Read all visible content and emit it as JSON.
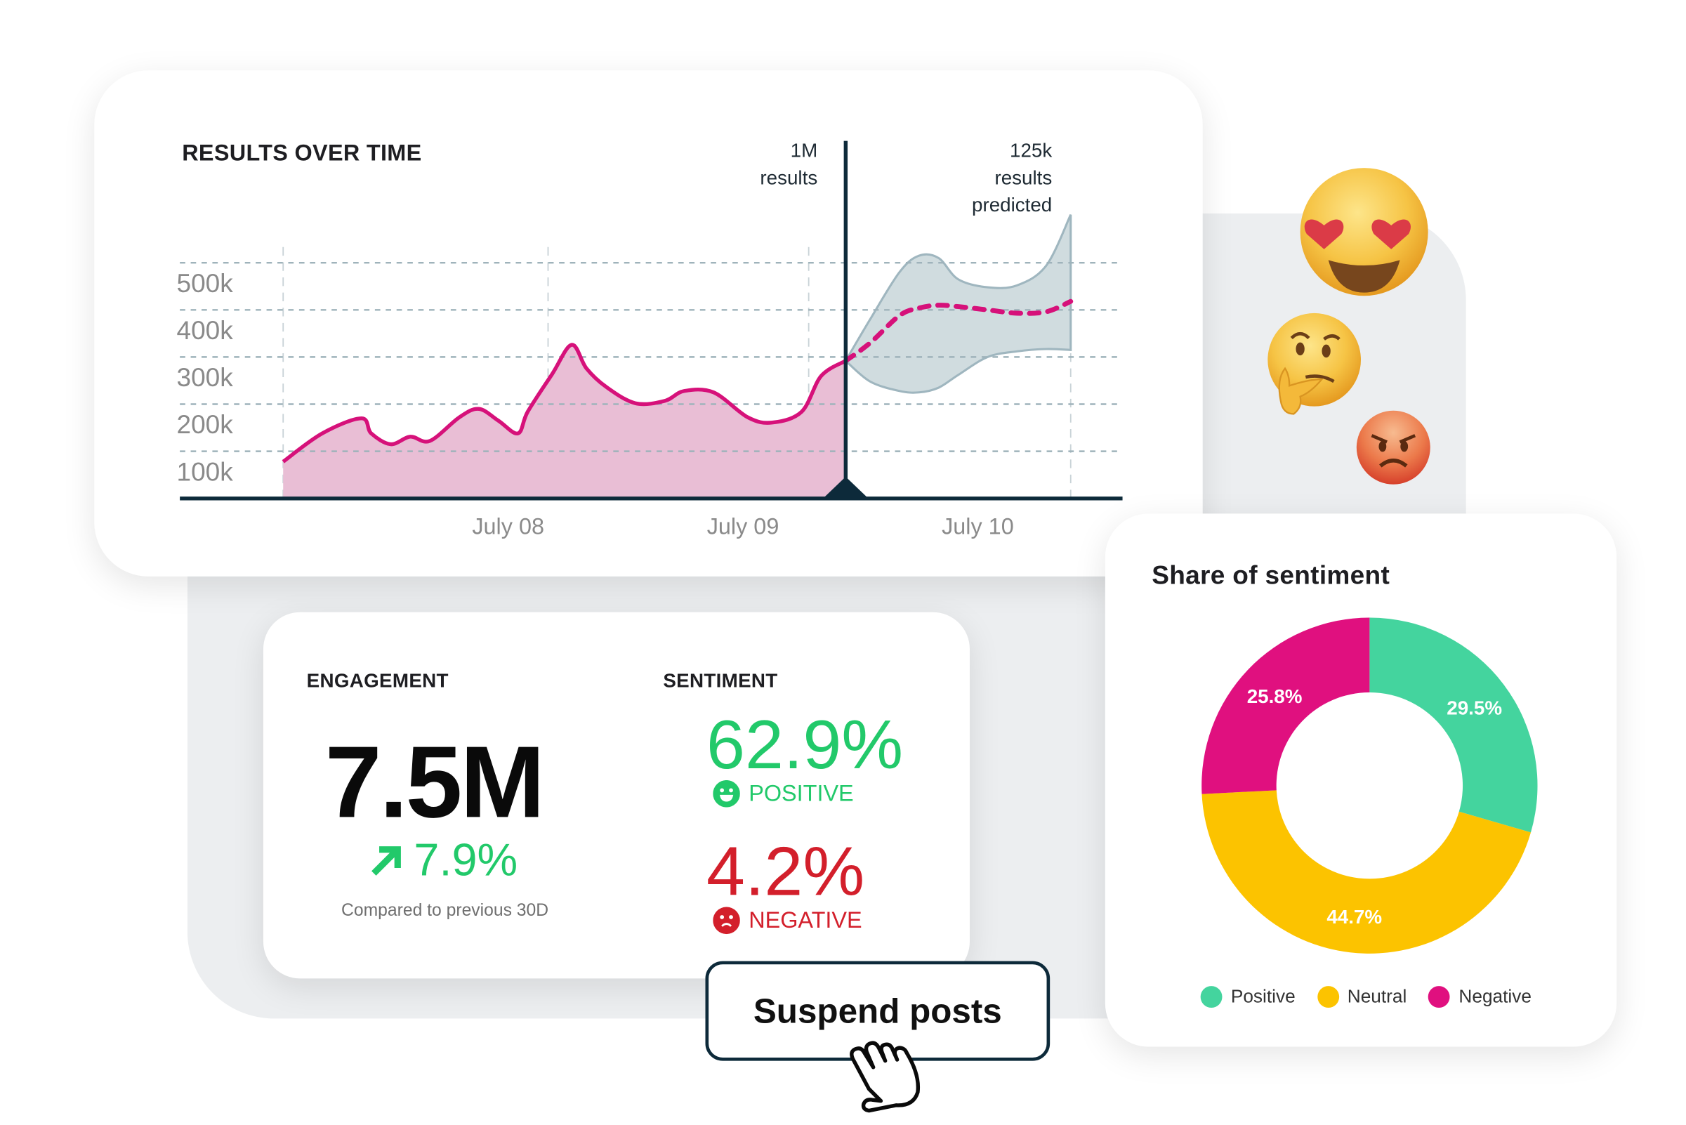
{
  "results_chart": {
    "title": "RESULTS OVER TIME",
    "chart_data": {
      "type": "area",
      "title": "RESULTS OVER TIME",
      "y_ticks": [
        "100k",
        "200k",
        "300k",
        "400k",
        "500k"
      ],
      "y_tick_values": [
        100000,
        200000,
        300000,
        400000,
        500000
      ],
      "x_ticks": [
        {
          "label": "July 08",
          "at": "07-08 00:00"
        },
        {
          "label": "July 09",
          "at": "07-09 00:00"
        },
        {
          "label": "July 10",
          "at": "07-10 00:00"
        }
      ],
      "ylim": [
        0,
        520000
      ],
      "grid": true,
      "series": [
        {
          "kind": "actual",
          "x": [
            "07-07 01:00",
            "07-07 05:00",
            "07-07 09:00",
            "07-07 10:00",
            "07-07 12:00",
            "07-07 14:00",
            "07-07 16:00",
            "07-07 19:00",
            "07-07 21:00",
            "07-07 23:00",
            "07-08 01:00",
            "07-08 02:00",
            "07-08 04:30",
            "07-08 06:30",
            "07-08 08:00",
            "07-08 10:00",
            "07-08 13:00",
            "07-08 16:00",
            "07-08 18:00",
            "07-08 21:00",
            "07-09 00:30",
            "07-09 03:00",
            "07-09 06:00",
            "07-09 08:00",
            "07-09 10:30"
          ],
          "y": [
            78000,
            138000,
            170000,
            138000,
            115000,
            131000,
            122000,
            172000,
            190000,
            165000,
            138000,
            184000,
            264000,
            326000,
            276000,
            237000,
            202000,
            207000,
            228000,
            225000,
            172000,
            161000,
            184000,
            260000,
            292000
          ]
        },
        {
          "kind": "forecast",
          "x": [
            "07-09 10:30",
            "07-09 13:00",
            "07-09 16:00",
            "07-09 18:00",
            "07-09 20:00",
            "07-09 22:00",
            "07-10 01:00",
            "07-10 04:00",
            "07-10 07:00",
            "07-10 09:30"
          ],
          "y": [
            292000,
            330000,
            388000,
            404000,
            410000,
            407000,
            400000,
            393000,
            396000,
            418000
          ],
          "upper": [
            292000,
            380000,
            480000,
            515000,
            510000,
            465000,
            448000,
            452000,
            494000,
            602000
          ],
          "lower": [
            292000,
            248000,
            228000,
            225000,
            235000,
            262000,
            300000,
            312000,
            317000,
            315000
          ]
        }
      ],
      "now_marker": "07-09 10:30",
      "annotations": {
        "actual": [
          "1M",
          "results"
        ],
        "predicted": [
          "125k",
          "results",
          "predicted"
        ]
      },
      "colors": {
        "actual_line": "#d6117a",
        "actual_fill": "#e9bed5",
        "band": "#d0dcdf",
        "band_edge": "#9fb6bf",
        "marker": "#0d2a3a",
        "grid": "#9fb3bb"
      }
    }
  },
  "engagement": {
    "title": "ENGAGEMENT",
    "value": "7.5M",
    "change": "7.9%",
    "change_icon": "arrow-up-right-icon",
    "compare_text": "Compared to previous 30D"
  },
  "sentiment": {
    "title": "SENTIMENT",
    "positive_value": "62.9%",
    "positive_label": "POSITIVE",
    "negative_value": "4.2%",
    "negative_label": "NEGATIVE",
    "colors": {
      "positive": "#22c96a",
      "negative": "#d31f2b"
    }
  },
  "action": {
    "suspend_label": "Suspend posts"
  },
  "emojis": [
    "heart-eyes-emoji",
    "thinking-emoji",
    "angry-emoji"
  ],
  "share": {
    "title": "Share of sentiment",
    "chart_data": {
      "type": "pie",
      "donut": true,
      "categories": [
        "Positive",
        "Neutral",
        "Negative"
      ],
      "values": [
        29.5,
        44.7,
        25.8
      ],
      "labels": [
        "29.5%",
        "44.7%",
        "25.8%"
      ],
      "colors": [
        "#44d49e",
        "#fcc300",
        "#e0107f"
      ],
      "legend_position": "bottom"
    }
  }
}
